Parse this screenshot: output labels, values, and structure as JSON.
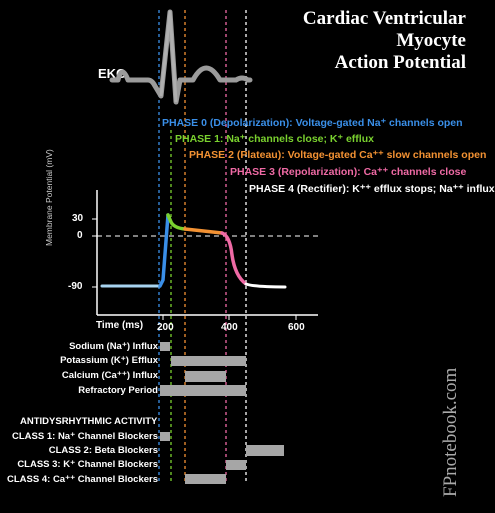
{
  "title": {
    "line1": "Cardiac Ventricular",
    "line2": "Myocyte",
    "line3": "Action Potential"
  },
  "ekg_label": "EKG",
  "colors": {
    "phase0": "#3a8fe8",
    "phase1": "#7ad12f",
    "phase2": "#f39233",
    "phase3": "#ef6aa5",
    "phase4": "#ffffff",
    "trace_baseline": "#a8d4f0",
    "bar": "#a6a6a6",
    "ekg": "#9b9b9b",
    "ekg_r": "#b0b0b0"
  },
  "phases": {
    "p0": "PHASE 0 (Depolarization): Voltage-gated Na⁺ channels open",
    "p1": "PHASE 1:  Na⁺ channels close; K⁺ efflux",
    "p2": "PHASE 2 (Plateau): Voltage-gated Ca⁺⁺ slow channels open",
    "p3": "PHASE 3 (Repolarization): Ca⁺⁺ channels close",
    "p4": "PHASE 4 (Rectifier): K⁺⁺ efflux stops; Na⁺⁺ influx"
  },
  "axes": {
    "y_label": "Membrane Potential (mV)",
    "y_ticks": [
      "30",
      "0",
      "-90"
    ],
    "x_label": "Time (ms)",
    "x_ticks": [
      "200",
      "400",
      "600"
    ]
  },
  "flux_rows": {
    "sodium": "Sodium (Na⁺) Influx",
    "potassium": "Potassium (K⁺) Efflux",
    "calcium": "Calcium (Ca⁺⁺) Influx",
    "refractory": "Refractory Period"
  },
  "antidys": {
    "heading": "ANTIDYSRHYTHMIC ACTIVITY",
    "class1": "CLASS 1: Na⁺ Channel Blockers",
    "class2": "CLASS 2: Beta Blockers",
    "class3": "CLASS 3: K⁺ Channel Blockers",
    "class4": "CLASS 4: Ca⁺⁺ Channel Blockers"
  },
  "watermark": "FPnotebook.com"
}
